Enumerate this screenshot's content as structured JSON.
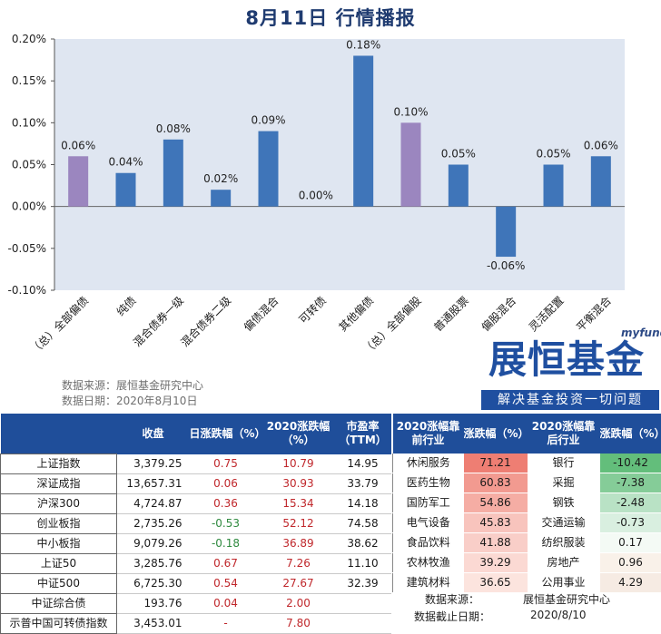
{
  "title": "8月11日  行情播报",
  "chart_data": {
    "type": "bar",
    "categories": [
      "（总）全部偏债",
      "纯债",
      "混合债券一级",
      "混合债券二级",
      "偏债混合",
      "可转债",
      "其他偏债",
      "（总）全部偏股",
      "普通股票",
      "偏股混合",
      "灵活配置",
      "平衡混合"
    ],
    "values": [
      0.06,
      0.04,
      0.08,
      0.02,
      0.09,
      0.0,
      0.18,
      0.1,
      0.05,
      -0.06,
      0.05,
      0.06
    ],
    "labels": [
      "0.06%",
      "0.04%",
      "0.08%",
      "0.02%",
      "0.09%",
      "0.00%",
      "0.18%",
      "0.10%",
      "0.05%",
      "-0.06%",
      "0.05%",
      "0.06%"
    ],
    "highlight": [
      true,
      false,
      false,
      false,
      false,
      false,
      false,
      true,
      false,
      false,
      false,
      false
    ],
    "yticks": [
      "0.20%",
      "0.15%",
      "0.10%",
      "0.05%",
      "0.00%",
      "-0.05%",
      "-0.10%"
    ],
    "ylim": [
      -0.1,
      0.2
    ],
    "colors": {
      "normal": "#3f75b9",
      "highlight": "#9b86bf",
      "plot_bg": "#dfe6f1"
    }
  },
  "source": {
    "line1": "数据来源：展恒基金研究中心",
    "line2": "数据日期：2020年8月10日"
  },
  "logo": {
    "small": "myfund",
    "big": "展恒基金",
    "tagline": "解决基金投资一切问题"
  },
  "left_table": {
    "headers": [
      "",
      "收盘",
      "日涨跌幅（%）",
      "2020涨跌幅（%）",
      "市盈率（TTM）"
    ],
    "rows": [
      {
        "name": "上证指数",
        "close": "3,379.25",
        "day": "0.75",
        "ytd": "10.79",
        "pe": "14.95",
        "day_dir": "red",
        "ytd_dir": "red"
      },
      {
        "name": "深证成指",
        "close": "13,657.31",
        "day": "0.06",
        "ytd": "30.93",
        "pe": "33.79",
        "day_dir": "red",
        "ytd_dir": "red"
      },
      {
        "name": "沪深300",
        "close": "4,724.87",
        "day": "0.36",
        "ytd": "15.34",
        "pe": "14.18",
        "day_dir": "red",
        "ytd_dir": "red"
      },
      {
        "name": "创业板指",
        "close": "2,735.26",
        "day": "-0.53",
        "ytd": "52.12",
        "pe": "74.58",
        "day_dir": "green",
        "ytd_dir": "red"
      },
      {
        "name": "中小板指",
        "close": "9,079.26",
        "day": "-0.18",
        "ytd": "36.89",
        "pe": "38.62",
        "day_dir": "green",
        "ytd_dir": "red"
      },
      {
        "name": "上证50",
        "close": "3,285.76",
        "day": "0.67",
        "ytd": "7.26",
        "pe": "11.10",
        "day_dir": "red",
        "ytd_dir": "red"
      },
      {
        "name": "中证500",
        "close": "6,725.30",
        "day": "0.54",
        "ytd": "27.67",
        "pe": "32.39",
        "day_dir": "red",
        "ytd_dir": "red"
      },
      {
        "name": "中证综合债",
        "close": "193.76",
        "day": "0.04",
        "ytd": "2.00",
        "pe": "",
        "day_dir": "red",
        "ytd_dir": "red"
      },
      {
        "name": "示普中国可转债指数",
        "close": "3,453.01",
        "day": "-",
        "ytd": "7.80",
        "pe": "",
        "day_dir": "red",
        "ytd_dir": "red"
      }
    ]
  },
  "right_table": {
    "headers": [
      "2020涨幅靠前行业",
      "涨跌幅（%）",
      "2020涨幅靠后行业",
      "涨跌幅（%）"
    ],
    "rows": [
      {
        "top": "休闲服务",
        "top_val": "71.21",
        "top_bg": "#ee7e73",
        "bottom": "银行",
        "bottom_val": "-10.42",
        "bottom_bg": "#63be7b"
      },
      {
        "top": "医药生物",
        "top_val": "60.83",
        "top_bg": "#f29a90",
        "bottom": "采掘",
        "bottom_val": "-7.38",
        "bottom_bg": "#85cc98"
      },
      {
        "top": "国防军工",
        "top_val": "54.86",
        "top_bg": "#f5ada4",
        "bottom": "钢铁",
        "bottom_val": "-2.48",
        "bottom_bg": "#b9e2c5"
      },
      {
        "top": "电气设备",
        "top_val": "45.83",
        "top_bg": "#f8c4bd",
        "bottom": "交通运输",
        "bottom_val": "-0.73",
        "bottom_bg": "#d9efe0"
      },
      {
        "top": "食品饮料",
        "top_val": "41.88",
        "top_bg": "#f9cec8",
        "bottom": "纺织服装",
        "bottom_val": "0.17",
        "bottom_bg": "#f4faf5"
      },
      {
        "top": "农林牧渔",
        "top_val": "39.29",
        "top_bg": "#fbd9d3",
        "bottom": "房地产",
        "bottom_val": "0.96",
        "bottom_bg": "#f9f1e9"
      },
      {
        "top": "建筑材料",
        "top_val": "36.65",
        "top_bg": "#fce4de",
        "bottom": "公用事业",
        "bottom_val": "4.29",
        "bottom_bg": "#f6ebe3"
      }
    ],
    "footer_label1": "数据来源：",
    "footer_value1": "展恒基金研究中心",
    "footer_label2": "数据截止日期：",
    "footer_value2": "2020/8/10"
  }
}
